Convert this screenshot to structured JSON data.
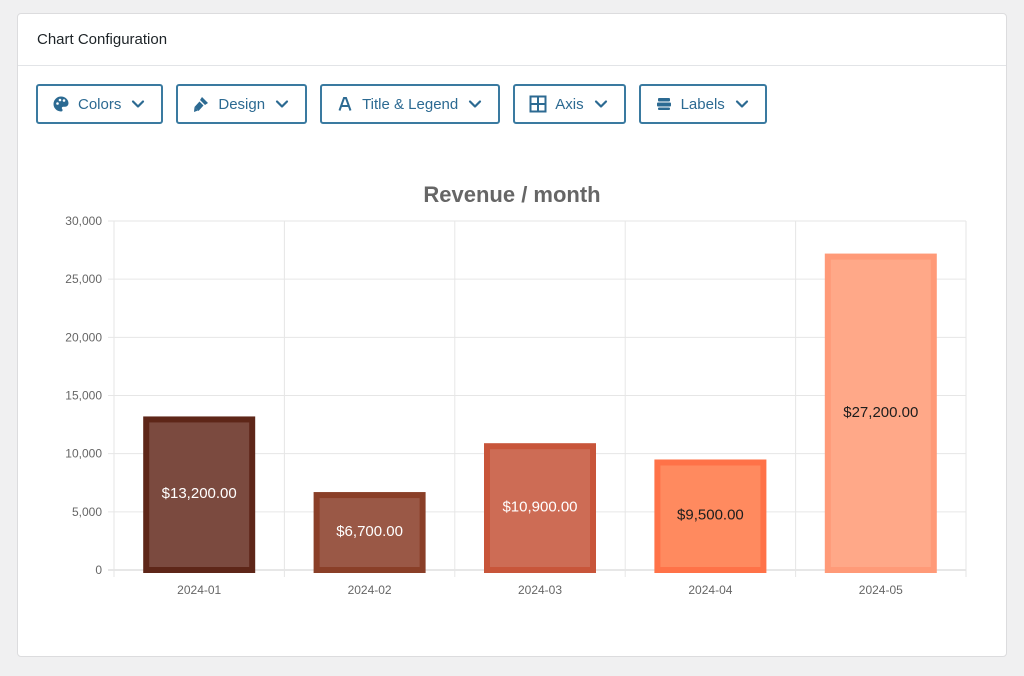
{
  "panel": {
    "title": "Chart Configuration"
  },
  "toolbar": {
    "buttons": [
      {
        "label": "Colors",
        "icon": "palette-icon"
      },
      {
        "label": "Design",
        "icon": "brush-icon"
      },
      {
        "label": "Title & Legend",
        "icon": "font-icon"
      },
      {
        "label": "Axis",
        "icon": "grid-icon"
      },
      {
        "label": "Labels",
        "icon": "labels-icon"
      }
    ],
    "accent": "#3a7aa0"
  },
  "chart_data": {
    "type": "bar",
    "title": "Revenue / month",
    "categories": [
      "2024-01",
      "2024-02",
      "2024-03",
      "2024-04",
      "2024-05"
    ],
    "values": [
      13200,
      6700,
      10900,
      9500,
      27200
    ],
    "data_labels": [
      "$13,200.00",
      "$6,700.00",
      "$10,900.00",
      "$9,500.00",
      "$27,200.00"
    ],
    "ylim": [
      0,
      30000
    ],
    "yticks": [
      0,
      5000,
      10000,
      15000,
      20000,
      25000,
      30000
    ],
    "ytick_labels": [
      "0",
      "5,000",
      "10,000",
      "15,000",
      "20,000",
      "25,000",
      "30,000"
    ],
    "xlabel": "",
    "ylabel": "",
    "grid": true,
    "bar_fill_colors": [
      "#7b4a3f",
      "#9a5846",
      "#cd6c55",
      "#ff8a5f",
      "#ffa888"
    ],
    "bar_border_colors": [
      "#5e2618",
      "#8a3f28",
      "#c8553a",
      "#ff7248",
      "#ff9a78"
    ],
    "label_colors": [
      "#ffffff",
      "#ffffff",
      "#ffffff",
      "#1d1d1d",
      "#1d1d1d"
    ]
  }
}
